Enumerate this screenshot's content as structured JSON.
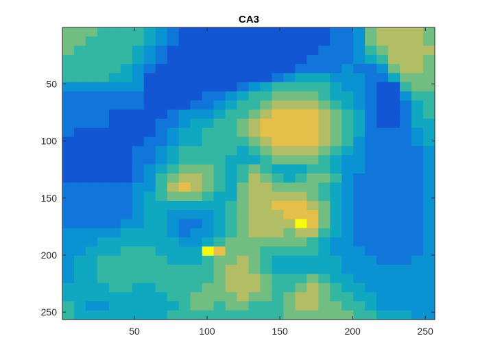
{
  "chart_data": {
    "type": "heatmap",
    "title": "CA3",
    "xlabel": "",
    "ylabel": "",
    "xlim": [
      0.5,
      256.5
    ],
    "ylim": [
      0.5,
      256.5
    ],
    "y_direction": "reversed",
    "x_ticks": [
      50,
      100,
      150,
      200,
      250
    ],
    "x_tick_labels": [
      "50",
      "100",
      "150",
      "200",
      "250"
    ],
    "y_ticks": [
      50,
      100,
      150,
      200,
      250
    ],
    "y_tick_labels": [
      "50",
      "100",
      "150",
      "200",
      "250"
    ],
    "colormap": "parula",
    "clim": [
      0,
      9
    ],
    "colors": {
      "axis": "#262626",
      "title": "#000000",
      "background": "#ffffff"
    },
    "block_size": 8,
    "grid_rows": 32,
    "grid_cols": 32,
    "values": [
      [
        6,
        6,
        6,
        5,
        5,
        5,
        5,
        4,
        3,
        2,
        1,
        1,
        1,
        1,
        1,
        1,
        1,
        1,
        1,
        1,
        1,
        1,
        1,
        2,
        2,
        3,
        6,
        7,
        7,
        7,
        7,
        6
      ],
      [
        6,
        6,
        5,
        5,
        5,
        5,
        5,
        4,
        3,
        2,
        1,
        1,
        1,
        1,
        1,
        1,
        1,
        1,
        1,
        1,
        1,
        1,
        1,
        2,
        2,
        3,
        6,
        7,
        7,
        7,
        7,
        6
      ],
      [
        6,
        5,
        5,
        5,
        5,
        5,
        4,
        3,
        2,
        1,
        1,
        1,
        1,
        1,
        1,
        1,
        1,
        1,
        1,
        1,
        1,
        1,
        2,
        2,
        2,
        3,
        5,
        6,
        7,
        7,
        7,
        7
      ],
      [
        5,
        5,
        5,
        5,
        5,
        5,
        4,
        3,
        2,
        1,
        1,
        1,
        1,
        1,
        1,
        1,
        1,
        1,
        1,
        1,
        1,
        2,
        2,
        2,
        2,
        3,
        4,
        5,
        7,
        7,
        7,
        6
      ],
      [
        5,
        5,
        5,
        5,
        5,
        4,
        3,
        2,
        1,
        1,
        1,
        1,
        1,
        1,
        1,
        1,
        1,
        1,
        1,
        1,
        2,
        2,
        2,
        2,
        3,
        2,
        2,
        3,
        6,
        7,
        7,
        6
      ],
      [
        5,
        5,
        5,
        5,
        4,
        4,
        3,
        1,
        1,
        1,
        1,
        1,
        1,
        1,
        1,
        1,
        1,
        1,
        2,
        3,
        4,
        4,
        4,
        3,
        3,
        3,
        2,
        2,
        4,
        6,
        6,
        6
      ],
      [
        3,
        3,
        3,
        3,
        3,
        3,
        3,
        1,
        1,
        1,
        1,
        1,
        1,
        1,
        1,
        2,
        3,
        4,
        5,
        5,
        5,
        5,
        5,
        4,
        3,
        3,
        2,
        1,
        1,
        5,
        6,
        6
      ],
      [
        2,
        2,
        2,
        2,
        2,
        2,
        2,
        1,
        1,
        1,
        1,
        1,
        2,
        2,
        3,
        4,
        5,
        5,
        6,
        6,
        6,
        6,
        5,
        4,
        4,
        3,
        2,
        1,
        1,
        3,
        5,
        5
      ],
      [
        2,
        2,
        2,
        2,
        2,
        2,
        2,
        1,
        1,
        1,
        1,
        2,
        2,
        3,
        4,
        5,
        5,
        6,
        7,
        7,
        7,
        7,
        6,
        5,
        4,
        3,
        2,
        1,
        1,
        2,
        4,
        5
      ],
      [
        2,
        2,
        2,
        2,
        1,
        1,
        1,
        1,
        1,
        2,
        3,
        3,
        3,
        4,
        5,
        5,
        6,
        7,
        8,
        8,
        8,
        8,
        7,
        6,
        5,
        4,
        2,
        1,
        1,
        2,
        4,
        5
      ],
      [
        2,
        2,
        2,
        2,
        1,
        1,
        1,
        1,
        2,
        2,
        3,
        4,
        4,
        5,
        5,
        6,
        7,
        8,
        8,
        8,
        8,
        8,
        7,
        6,
        5,
        4,
        2,
        1,
        1,
        2,
        4,
        4
      ],
      [
        2,
        1,
        1,
        1,
        1,
        1,
        1,
        1,
        2,
        3,
        4,
        4,
        5,
        5,
        5,
        6,
        7,
        8,
        8,
        8,
        8,
        8,
        7,
        6,
        5,
        4,
        2,
        2,
        2,
        2,
        3,
        4
      ],
      [
        1,
        1,
        1,
        1,
        1,
        1,
        1,
        2,
        2,
        3,
        4,
        4,
        5,
        5,
        5,
        5,
        6,
        7,
        8,
        8,
        8,
        8,
        7,
        6,
        5,
        3,
        2,
        2,
        2,
        2,
        3,
        4
      ],
      [
        1,
        1,
        1,
        1,
        1,
        1,
        2,
        2,
        3,
        4,
        5,
        5,
        5,
        5,
        5,
        4,
        5,
        6,
        7,
        7,
        7,
        7,
        6,
        5,
        4,
        3,
        2,
        2,
        2,
        2,
        2,
        3
      ],
      [
        1,
        1,
        1,
        1,
        1,
        1,
        2,
        2,
        3,
        4,
        5,
        5,
        5,
        5,
        4,
        4,
        4,
        5,
        6,
        6,
        6,
        6,
        5,
        4,
        3,
        3,
        2,
        2,
        2,
        2,
        2,
        3
      ],
      [
        1,
        1,
        1,
        1,
        1,
        1,
        2,
        3,
        4,
        5,
        6,
        6,
        6,
        5,
        4,
        5,
        6,
        5,
        4,
        4,
        4,
        5,
        5,
        4,
        3,
        3,
        2,
        2,
        2,
        2,
        2,
        3
      ],
      [
        1,
        1,
        1,
        1,
        1,
        1,
        2,
        3,
        5,
        6,
        7,
        7,
        6,
        5,
        4,
        5,
        7,
        6,
        5,
        4,
        5,
        6,
        6,
        5,
        3,
        2,
        2,
        2,
        2,
        2,
        2,
        3
      ],
      [
        2,
        2,
        2,
        2,
        2,
        2,
        3,
        3,
        5,
        7,
        8,
        7,
        6,
        5,
        4,
        6,
        7,
        7,
        6,
        6,
        6,
        6,
        5,
        4,
        3,
        2,
        2,
        2,
        2,
        2,
        2,
        3
      ],
      [
        2,
        2,
        2,
        2,
        2,
        2,
        3,
        4,
        5,
        6,
        6,
        6,
        5,
        4,
        4,
        6,
        7,
        7,
        7,
        7,
        7,
        6,
        5,
        4,
        3,
        2,
        2,
        2,
        2,
        2,
        2,
        3
      ],
      [
        2,
        2,
        2,
        2,
        2,
        2,
        3,
        4,
        4,
        4,
        4,
        4,
        4,
        4,
        5,
        6,
        7,
        7,
        8,
        8,
        8,
        7,
        6,
        4,
        3,
        2,
        2,
        2,
        2,
        2,
        2,
        3
      ],
      [
        2,
        2,
        2,
        2,
        2,
        2,
        3,
        4,
        4,
        3,
        3,
        3,
        3,
        4,
        5,
        6,
        7,
        7,
        7,
        8,
        8,
        8,
        6,
        4,
        3,
        2,
        2,
        2,
        2,
        2,
        2,
        3
      ],
      [
        2,
        2,
        2,
        2,
        2,
        3,
        3,
        4,
        4,
        3,
        2,
        2,
        3,
        4,
        5,
        6,
        7,
        7,
        7,
        7,
        9,
        8,
        6,
        4,
        3,
        2,
        2,
        2,
        2,
        2,
        2,
        3
      ],
      [
        3,
        3,
        3,
        3,
        3,
        4,
        4,
        4,
        4,
        3,
        2,
        3,
        3,
        4,
        5,
        6,
        7,
        7,
        7,
        6,
        7,
        7,
        5,
        4,
        3,
        2,
        2,
        2,
        2,
        2,
        2,
        3
      ],
      [
        3,
        3,
        3,
        4,
        4,
        4,
        4,
        4,
        4,
        4,
        3,
        3,
        4,
        5,
        6,
        6,
        6,
        6,
        6,
        6,
        6,
        5,
        4,
        3,
        3,
        2,
        2,
        2,
        2,
        2,
        2,
        3
      ],
      [
        3,
        3,
        4,
        4,
        4,
        5,
        5,
        5,
        4,
        4,
        4,
        4,
        9,
        8,
        6,
        6,
        6,
        5,
        5,
        5,
        5,
        5,
        4,
        3,
        3,
        3,
        2,
        2,
        2,
        2,
        2,
        3
      ],
      [
        3,
        4,
        4,
        5,
        5,
        5,
        5,
        5,
        5,
        4,
        4,
        4,
        5,
        6,
        6,
        7,
        6,
        5,
        4,
        4,
        4,
        4,
        4,
        4,
        3,
        3,
        3,
        2,
        2,
        2,
        3,
        3
      ],
      [
        3,
        4,
        4,
        5,
        5,
        5,
        5,
        5,
        5,
        5,
        5,
        5,
        5,
        6,
        7,
        7,
        6,
        5,
        4,
        4,
        4,
        4,
        4,
        4,
        3,
        3,
        3,
        3,
        3,
        3,
        3,
        3
      ],
      [
        3,
        4,
        4,
        5,
        5,
        5,
        5,
        5,
        5,
        5,
        5,
        5,
        5,
        6,
        7,
        7,
        7,
        6,
        5,
        5,
        5,
        6,
        5,
        4,
        4,
        3,
        3,
        3,
        3,
        3,
        3,
        3
      ],
      [
        4,
        4,
        4,
        4,
        5,
        5,
        4,
        4,
        5,
        5,
        5,
        5,
        6,
        6,
        7,
        7,
        7,
        6,
        5,
        5,
        6,
        7,
        6,
        5,
        4,
        4,
        3,
        3,
        3,
        3,
        3,
        3
      ],
      [
        4,
        4,
        4,
        4,
        4,
        4,
        4,
        4,
        4,
        5,
        5,
        6,
        6,
        6,
        6,
        7,
        6,
        6,
        5,
        6,
        7,
        7,
        6,
        5,
        5,
        4,
        4,
        3,
        3,
        3,
        3,
        3
      ],
      [
        5,
        4,
        3,
        3,
        4,
        4,
        4,
        4,
        4,
        4,
        5,
        6,
        6,
        5,
        6,
        6,
        5,
        5,
        5,
        6,
        7,
        7,
        6,
        6,
        5,
        5,
        4,
        3,
        3,
        3,
        3,
        3
      ],
      [
        5,
        4,
        4,
        4,
        4,
        4,
        4,
        4,
        4,
        5,
        5,
        5,
        5,
        5,
        5,
        5,
        5,
        5,
        5,
        6,
        6,
        6,
        6,
        6,
        6,
        5,
        5,
        4,
        4,
        4,
        3,
        3
      ]
    ]
  }
}
